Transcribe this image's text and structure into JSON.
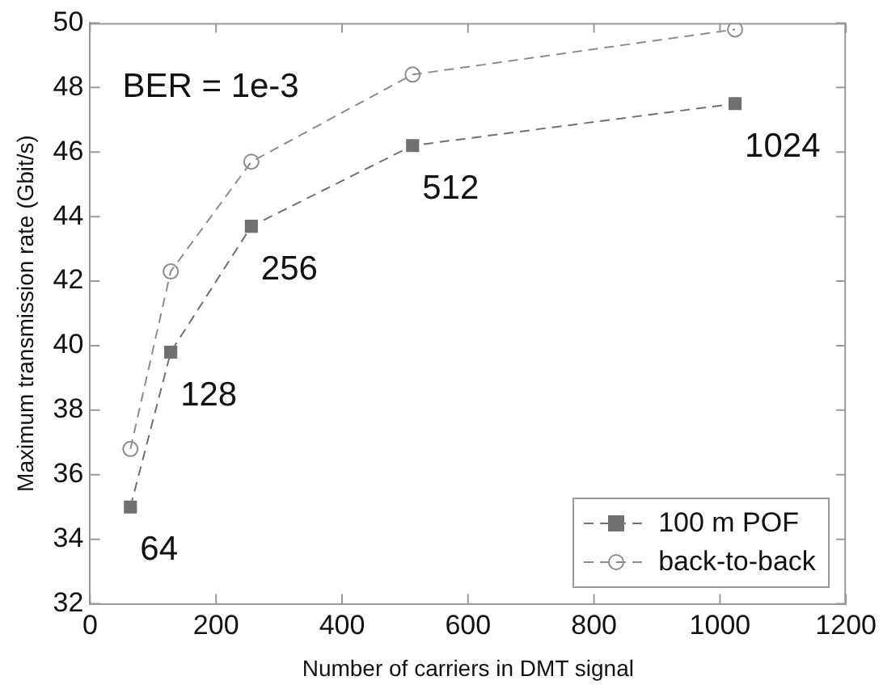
{
  "chart_data": {
    "type": "line",
    "xlabel": "Number of carriers in DMT signal",
    "ylabel": "Maximum transmission rate (Gbit/s)",
    "x": [
      64,
      128,
      256,
      512,
      1024
    ],
    "series": [
      {
        "name": "100 m POF",
        "color": "#707070",
        "marker": "square",
        "values": [
          35.0,
          39.8,
          43.7,
          46.2,
          47.5
        ]
      },
      {
        "name": "back-to-back",
        "color": "#8c8c8c",
        "marker": "circle",
        "values": [
          36.8,
          42.3,
          45.7,
          48.4,
          49.8
        ]
      }
    ],
    "xlim": [
      0,
      1200
    ],
    "xticks": [
      0,
      200,
      400,
      600,
      800,
      1000,
      1200
    ],
    "ylim": [
      32,
      50
    ],
    "yticks": [
      32,
      34,
      36,
      38,
      40,
      42,
      44,
      46,
      48,
      50
    ],
    "grid": false,
    "legend": "bottom right",
    "line_style": "dashed",
    "annotations": [
      "BER = 1e-3",
      {
        "text": "64",
        "x": 64,
        "y": 35.0
      },
      {
        "text": "128",
        "x": 128,
        "y": 39.8
      },
      {
        "text": "256",
        "x": 256,
        "y": 43.7
      },
      {
        "text": "512",
        "x": 512,
        "y": 46.2
      },
      {
        "text": "1024",
        "x": 1024,
        "y": 47.5
      }
    ]
  }
}
